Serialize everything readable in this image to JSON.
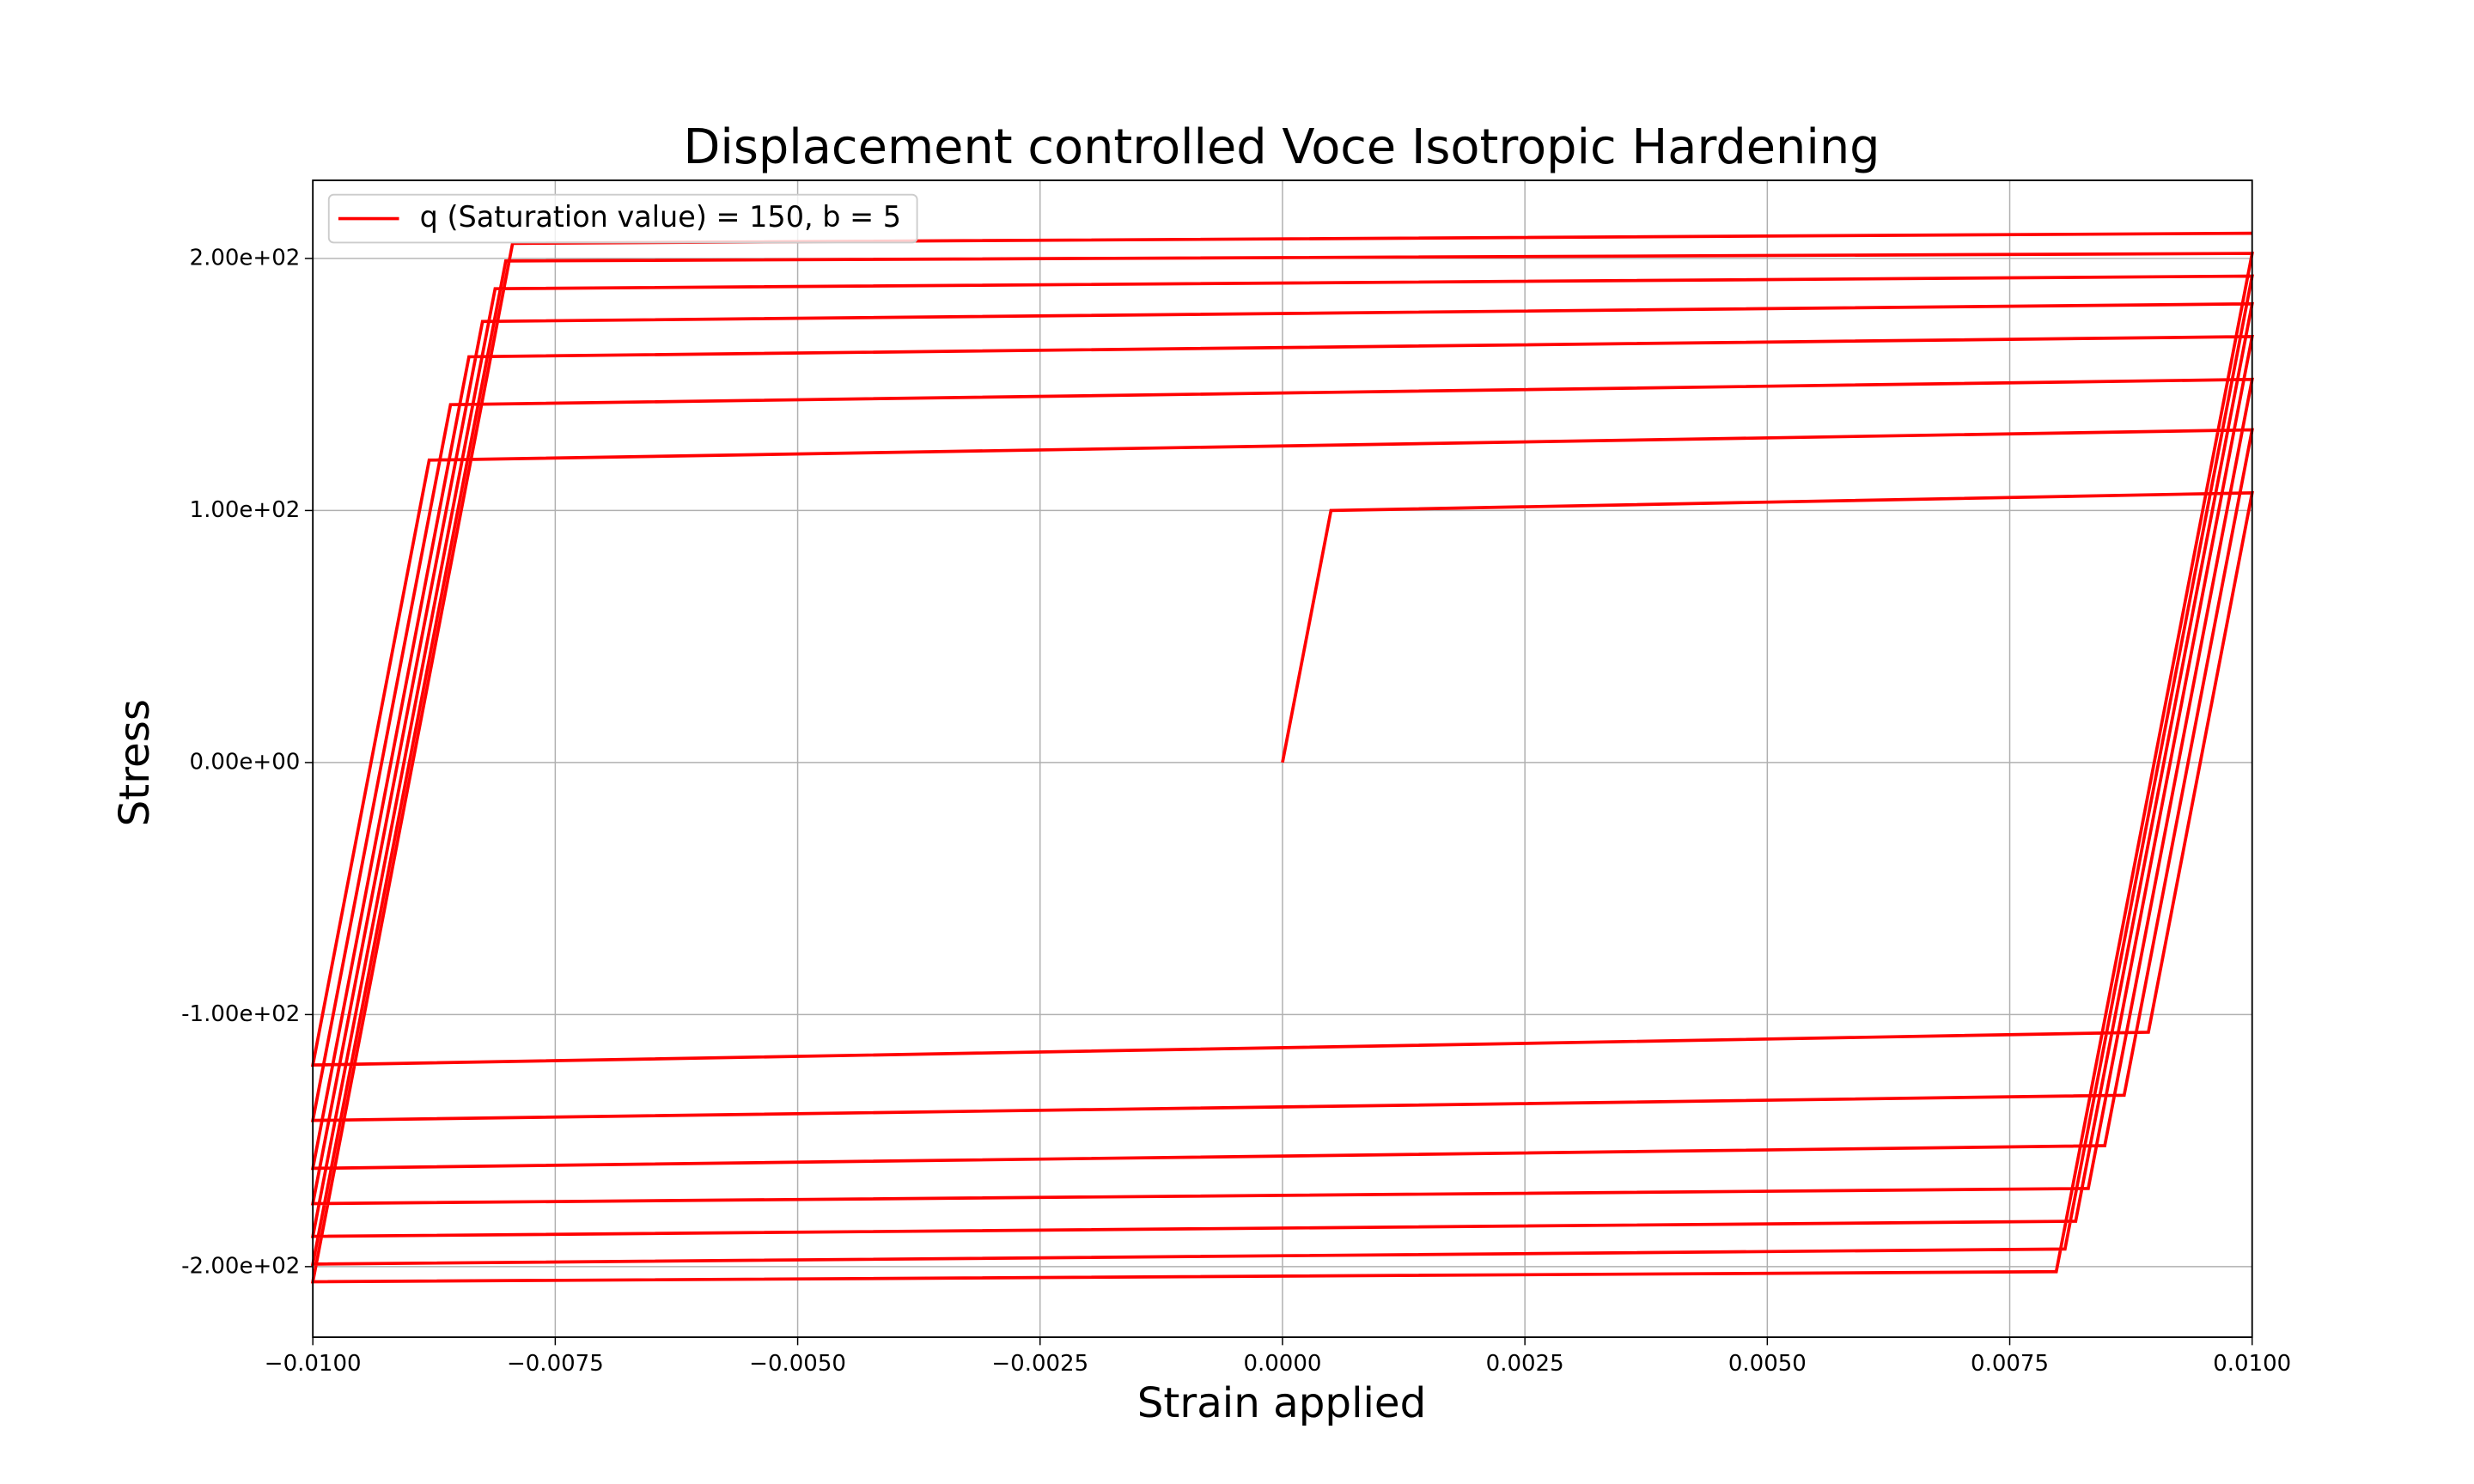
{
  "chart_data": {
    "type": "line",
    "title": "Displacement controlled Voce Isotropic Hardening",
    "x_label": "Strain applied",
    "y_label": "Stress",
    "x": [
      0,
      0.0005,
      0.01,
      0.00893,
      -0.01,
      -0.0088,
      0.01,
      0.00868,
      -0.01,
      -0.00858,
      0.01,
      0.00848,
      -0.01,
      -0.00839,
      0.01,
      0.00831,
      -0.01,
      -0.00825,
      0.01,
      0.00818,
      -0.01,
      -0.00812,
      0.01,
      0.00807,
      -0.01,
      -0.00801,
      0.01,
      0.00798,
      -0.01,
      -0.00794,
      0.01
    ],
    "series": [
      {
        "name": "q (Saturation value) = 150, b = 5",
        "color": "#ff0000",
        "values": [
          0,
          100,
          107,
          -107,
          -120,
          120,
          132,
          -132,
          -142,
          142,
          152,
          -152,
          -161,
          161,
          169,
          -169,
          -175,
          175,
          182,
          -182,
          -188,
          188,
          193,
          -193,
          -199,
          199,
          202,
          -202,
          -206,
          206,
          210
        ]
      }
    ],
    "xlim": [
      -0.01,
      0.01
    ],
    "ylim": [
      -228,
      231
    ],
    "xticks": [
      {
        "value": -0.01,
        "label": "−0.0100"
      },
      {
        "value": -0.0075,
        "label": "−0.0075"
      },
      {
        "value": -0.005,
        "label": "−0.0050"
      },
      {
        "value": -0.0025,
        "label": "−0.0025"
      },
      {
        "value": 0,
        "label": "0.0000"
      },
      {
        "value": 0.0025,
        "label": "0.0025"
      },
      {
        "value": 0.005,
        "label": "0.0050"
      },
      {
        "value": 0.0075,
        "label": "0.0075"
      },
      {
        "value": 0.01,
        "label": "0.0100"
      }
    ],
    "yticks": [
      {
        "value": -200,
        "label": "-2.00e+02"
      },
      {
        "value": -100,
        "label": "-1.00e+02"
      },
      {
        "value": 0,
        "label": "0.00e+00"
      },
      {
        "value": 100,
        "label": "1.00e+02"
      },
      {
        "value": 200,
        "label": "2.00e+02"
      }
    ],
    "grid": true,
    "legend": "upper-left"
  }
}
